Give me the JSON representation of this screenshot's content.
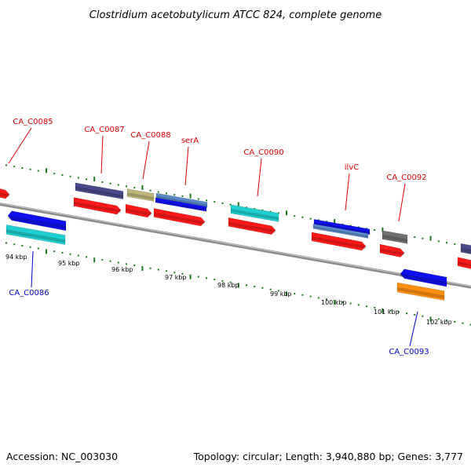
{
  "title": "Clostridium acetobutylicum ATCC 824, complete genome",
  "footer": {
    "accession": "Accession: NC_003030",
    "summary": "Topology: circular; Length: 3,940,880 bp; Genes: 3,777"
  },
  "colors": {
    "forward_label": "#e00000",
    "reverse_label": "#0000cc",
    "tick": "#1a7a1a",
    "backbone": "#8c8c8c",
    "cds": "#ff1a1a",
    "navy": "#4a4a8a",
    "khaki": "#bdb57a",
    "steel": "#5a8ac8",
    "blue": "#1010ee",
    "cyan": "#20d0d0",
    "gray": "#707070",
    "orange": "#ff9010"
  },
  "scale": {
    "unit": "kbp",
    "labels": [
      "94 kbp",
      "95 kbp",
      "96 kbp",
      "97 kbp",
      "98 kbp",
      "99 kbp",
      "100 kbp",
      "101 kbp",
      "102 kbp"
    ]
  },
  "genes": [
    {
      "name": "CA_C0085",
      "strand": "forward"
    },
    {
      "name": "CA_C0086",
      "strand": "reverse"
    },
    {
      "name": "CA_C0087",
      "strand": "forward"
    },
    {
      "name": "CA_C0088",
      "strand": "forward"
    },
    {
      "name": "serA",
      "strand": "forward"
    },
    {
      "name": "CA_C0090",
      "strand": "forward"
    },
    {
      "name": "ilvC",
      "strand": "forward"
    },
    {
      "name": "CA_C0092",
      "strand": "forward"
    },
    {
      "name": "CA_C0093",
      "strand": "reverse"
    }
  ]
}
